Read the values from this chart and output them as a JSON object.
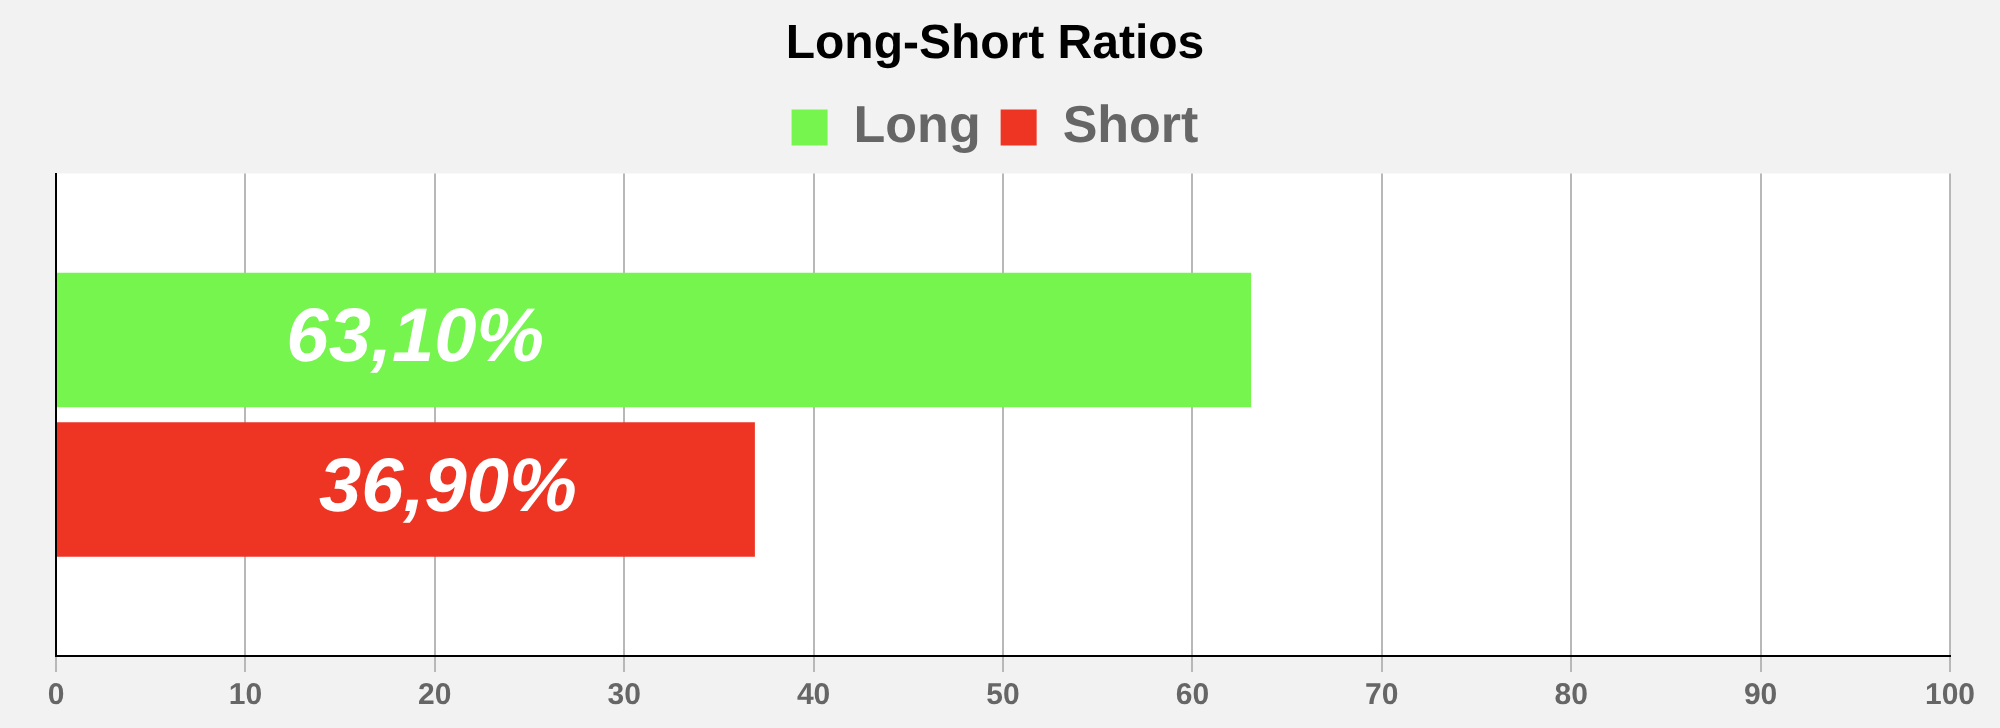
{
  "chart_data": {
    "type": "bar",
    "orientation": "horizontal",
    "title": "Long-Short Ratios",
    "categories": [
      null
    ],
    "series": [
      {
        "name": "Long",
        "color": "#76f54f",
        "values": [
          63.1
        ],
        "value_labels": [
          "63,10%"
        ]
      },
      {
        "name": "Short",
        "color": "#ee3524",
        "values": [
          36.9
        ],
        "value_labels": [
          "36,90%"
        ]
      }
    ],
    "xlim": [
      0,
      100
    ],
    "xticks": [
      0,
      10,
      20,
      30,
      40,
      50,
      60,
      70,
      80,
      90,
      100
    ],
    "grid": "x",
    "legend": "top"
  }
}
